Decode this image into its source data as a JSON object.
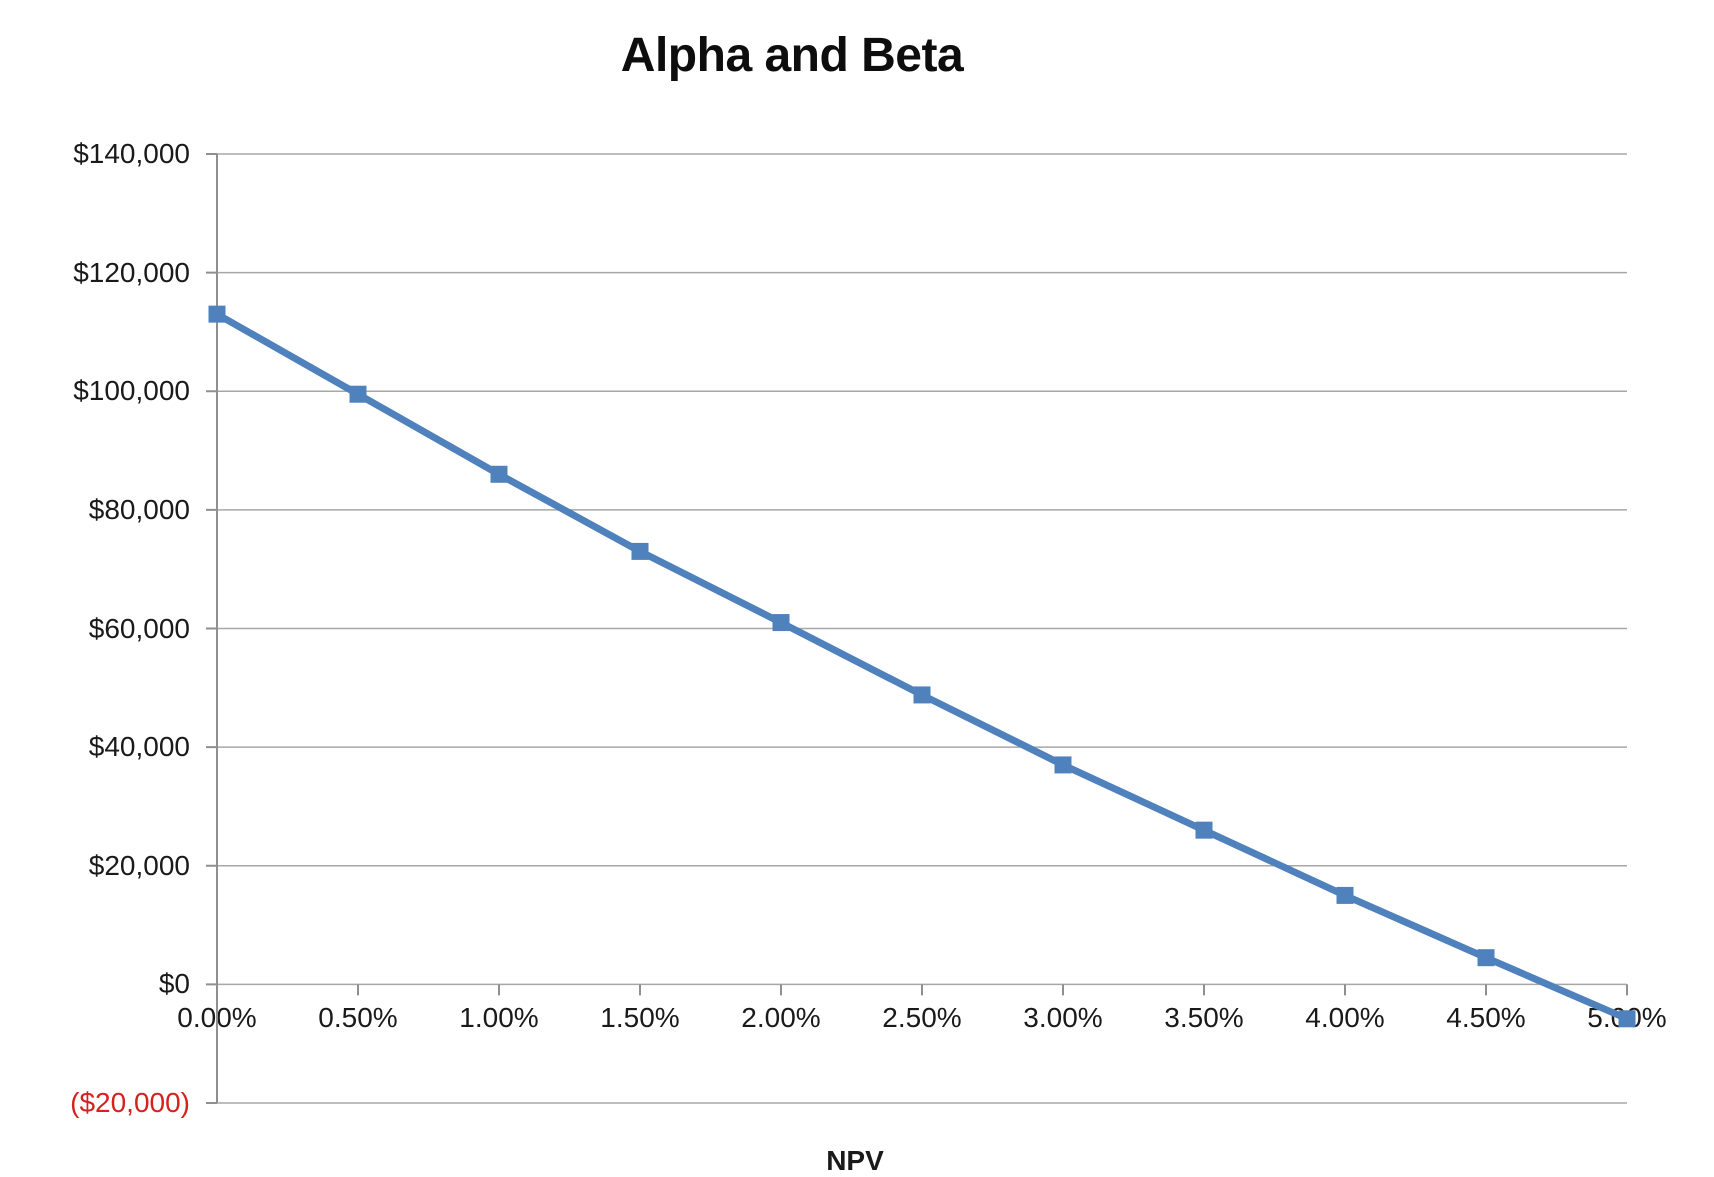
{
  "chart": {
    "title": "Alpha and Beta",
    "clipped_bottom_label": "NPV",
    "colors": {
      "series_line": "#4f81bd",
      "gridline": "#a7a7a7",
      "axis_line": "#8f8f8f",
      "tick_label": "#1a1a1a",
      "negative_tick_label": "#d2231f",
      "title": "#0d0d0d",
      "background": "#ffffff"
    }
  },
  "chart_data": {
    "type": "line",
    "title": "Alpha and Beta",
    "xlabel": "",
    "ylabel": "",
    "grid": true,
    "legend_position": "none",
    "x_percent": [
      0.0,
      0.5,
      1.0,
      1.5,
      2.0,
      2.5,
      3.0,
      3.5,
      4.0,
      4.5,
      5.0
    ],
    "x_tick_labels": [
      "0.00%",
      "0.50%",
      "1.00%",
      "1.50%",
      "2.00%",
      "2.50%",
      "3.00%",
      "3.50%",
      "4.00%",
      "4.50%",
      "5.00%"
    ],
    "xlim_percent": [
      0,
      5
    ],
    "ylim": [
      -20000,
      140000
    ],
    "y_ticks": [
      {
        "label": "$140,000",
        "value": 140000,
        "negative": false
      },
      {
        "label": "$120,000",
        "value": 120000,
        "negative": false
      },
      {
        "label": "$100,000",
        "value": 100000,
        "negative": false
      },
      {
        "label": "$80,000",
        "value": 80000,
        "negative": false
      },
      {
        "label": "$60,000",
        "value": 60000,
        "negative": false
      },
      {
        "label": "$40,000",
        "value": 40000,
        "negative": false
      },
      {
        "label": "$20,000",
        "value": 20000,
        "negative": false
      },
      {
        "label": "$0",
        "value": 0,
        "negative": false
      },
      {
        "label": "($20,000)",
        "value": -20000,
        "negative": true
      }
    ],
    "series": [
      {
        "name": "NPV",
        "marker": "square",
        "color": "#4f81bd",
        "values": [
          113000,
          99500,
          86000,
          73000,
          61000,
          48800,
          37000,
          26000,
          15000,
          4500,
          -5800
        ]
      }
    ]
  }
}
